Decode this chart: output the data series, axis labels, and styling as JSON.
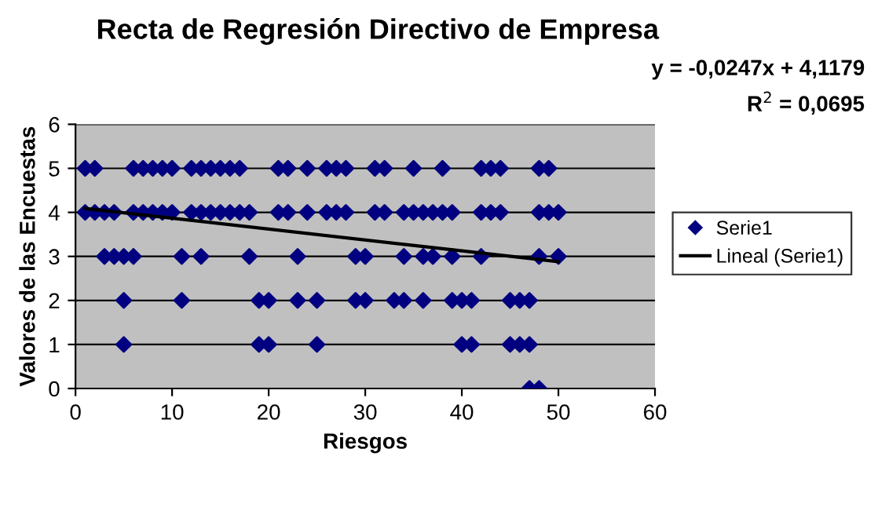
{
  "chart_data": {
    "type": "scatter",
    "title": "Recta de Regresión Directivo de Empresa",
    "xlabel": "Riesgos",
    "ylabel": "Valores de las Encuestas",
    "annotations": [
      "y = -0,0247x + 4,1179",
      "R$^{2}$ = 0,0695"
    ],
    "series": [
      {
        "name": "Serie1",
        "color": "#000080",
        "marker": "diamond",
        "x": [
          1,
          2,
          6,
          7,
          8,
          9,
          10,
          12,
          13,
          14,
          15,
          16,
          17,
          21,
          22,
          24,
          26,
          27,
          28,
          31,
          32,
          35,
          38,
          42,
          43,
          44,
          48,
          49,
          1,
          2,
          3,
          4,
          6,
          7,
          8,
          9,
          10,
          12,
          13,
          14,
          15,
          16,
          17,
          18,
          21,
          22,
          24,
          26,
          27,
          28,
          31,
          32,
          34,
          35,
          36,
          37,
          38,
          39,
          42,
          43,
          44,
          48,
          49,
          50,
          3,
          4,
          5,
          6,
          11,
          13,
          18,
          23,
          29,
          30,
          34,
          36,
          37,
          39,
          42,
          48,
          50,
          5,
          11,
          19,
          20,
          23,
          25,
          29,
          30,
          33,
          34,
          36,
          39,
          40,
          41,
          45,
          46,
          47,
          5,
          19,
          20,
          25,
          40,
          41,
          45,
          46,
          47,
          47,
          48
        ],
        "values": [
          5,
          5,
          5,
          5,
          5,
          5,
          5,
          5,
          5,
          5,
          5,
          5,
          5,
          5,
          5,
          5,
          5,
          5,
          5,
          5,
          5,
          5,
          5,
          5,
          5,
          5,
          5,
          5,
          4,
          4,
          4,
          4,
          4,
          4,
          4,
          4,
          4,
          4,
          4,
          4,
          4,
          4,
          4,
          4,
          4,
          4,
          4,
          4,
          4,
          4,
          4,
          4,
          4,
          4,
          4,
          4,
          4,
          4,
          4,
          4,
          4,
          4,
          4,
          4,
          3,
          3,
          3,
          3,
          3,
          3,
          3,
          3,
          3,
          3,
          3,
          3,
          3,
          3,
          3,
          3,
          3,
          2,
          2,
          2,
          2,
          2,
          2,
          2,
          2,
          2,
          2,
          2,
          2,
          2,
          2,
          2,
          2,
          2,
          1,
          1,
          1,
          1,
          1,
          1,
          1,
          1,
          1,
          0,
          0
        ]
      },
      {
        "name": "Lineal (Serie1)",
        "type": "line",
        "color": "#000000",
        "marker": "none",
        "line_style": "solid",
        "x": [
          1,
          50
        ],
        "values": [
          4.09,
          2.88
        ]
      }
    ],
    "xlim": [
      0,
      60
    ],
    "xticks": [
      0,
      10,
      20,
      30,
      40,
      50,
      60
    ],
    "ylim": [
      0,
      6
    ],
    "yticks": [
      0,
      1,
      2,
      3,
      4,
      5,
      6
    ],
    "grid": "y",
    "legend": "right"
  }
}
